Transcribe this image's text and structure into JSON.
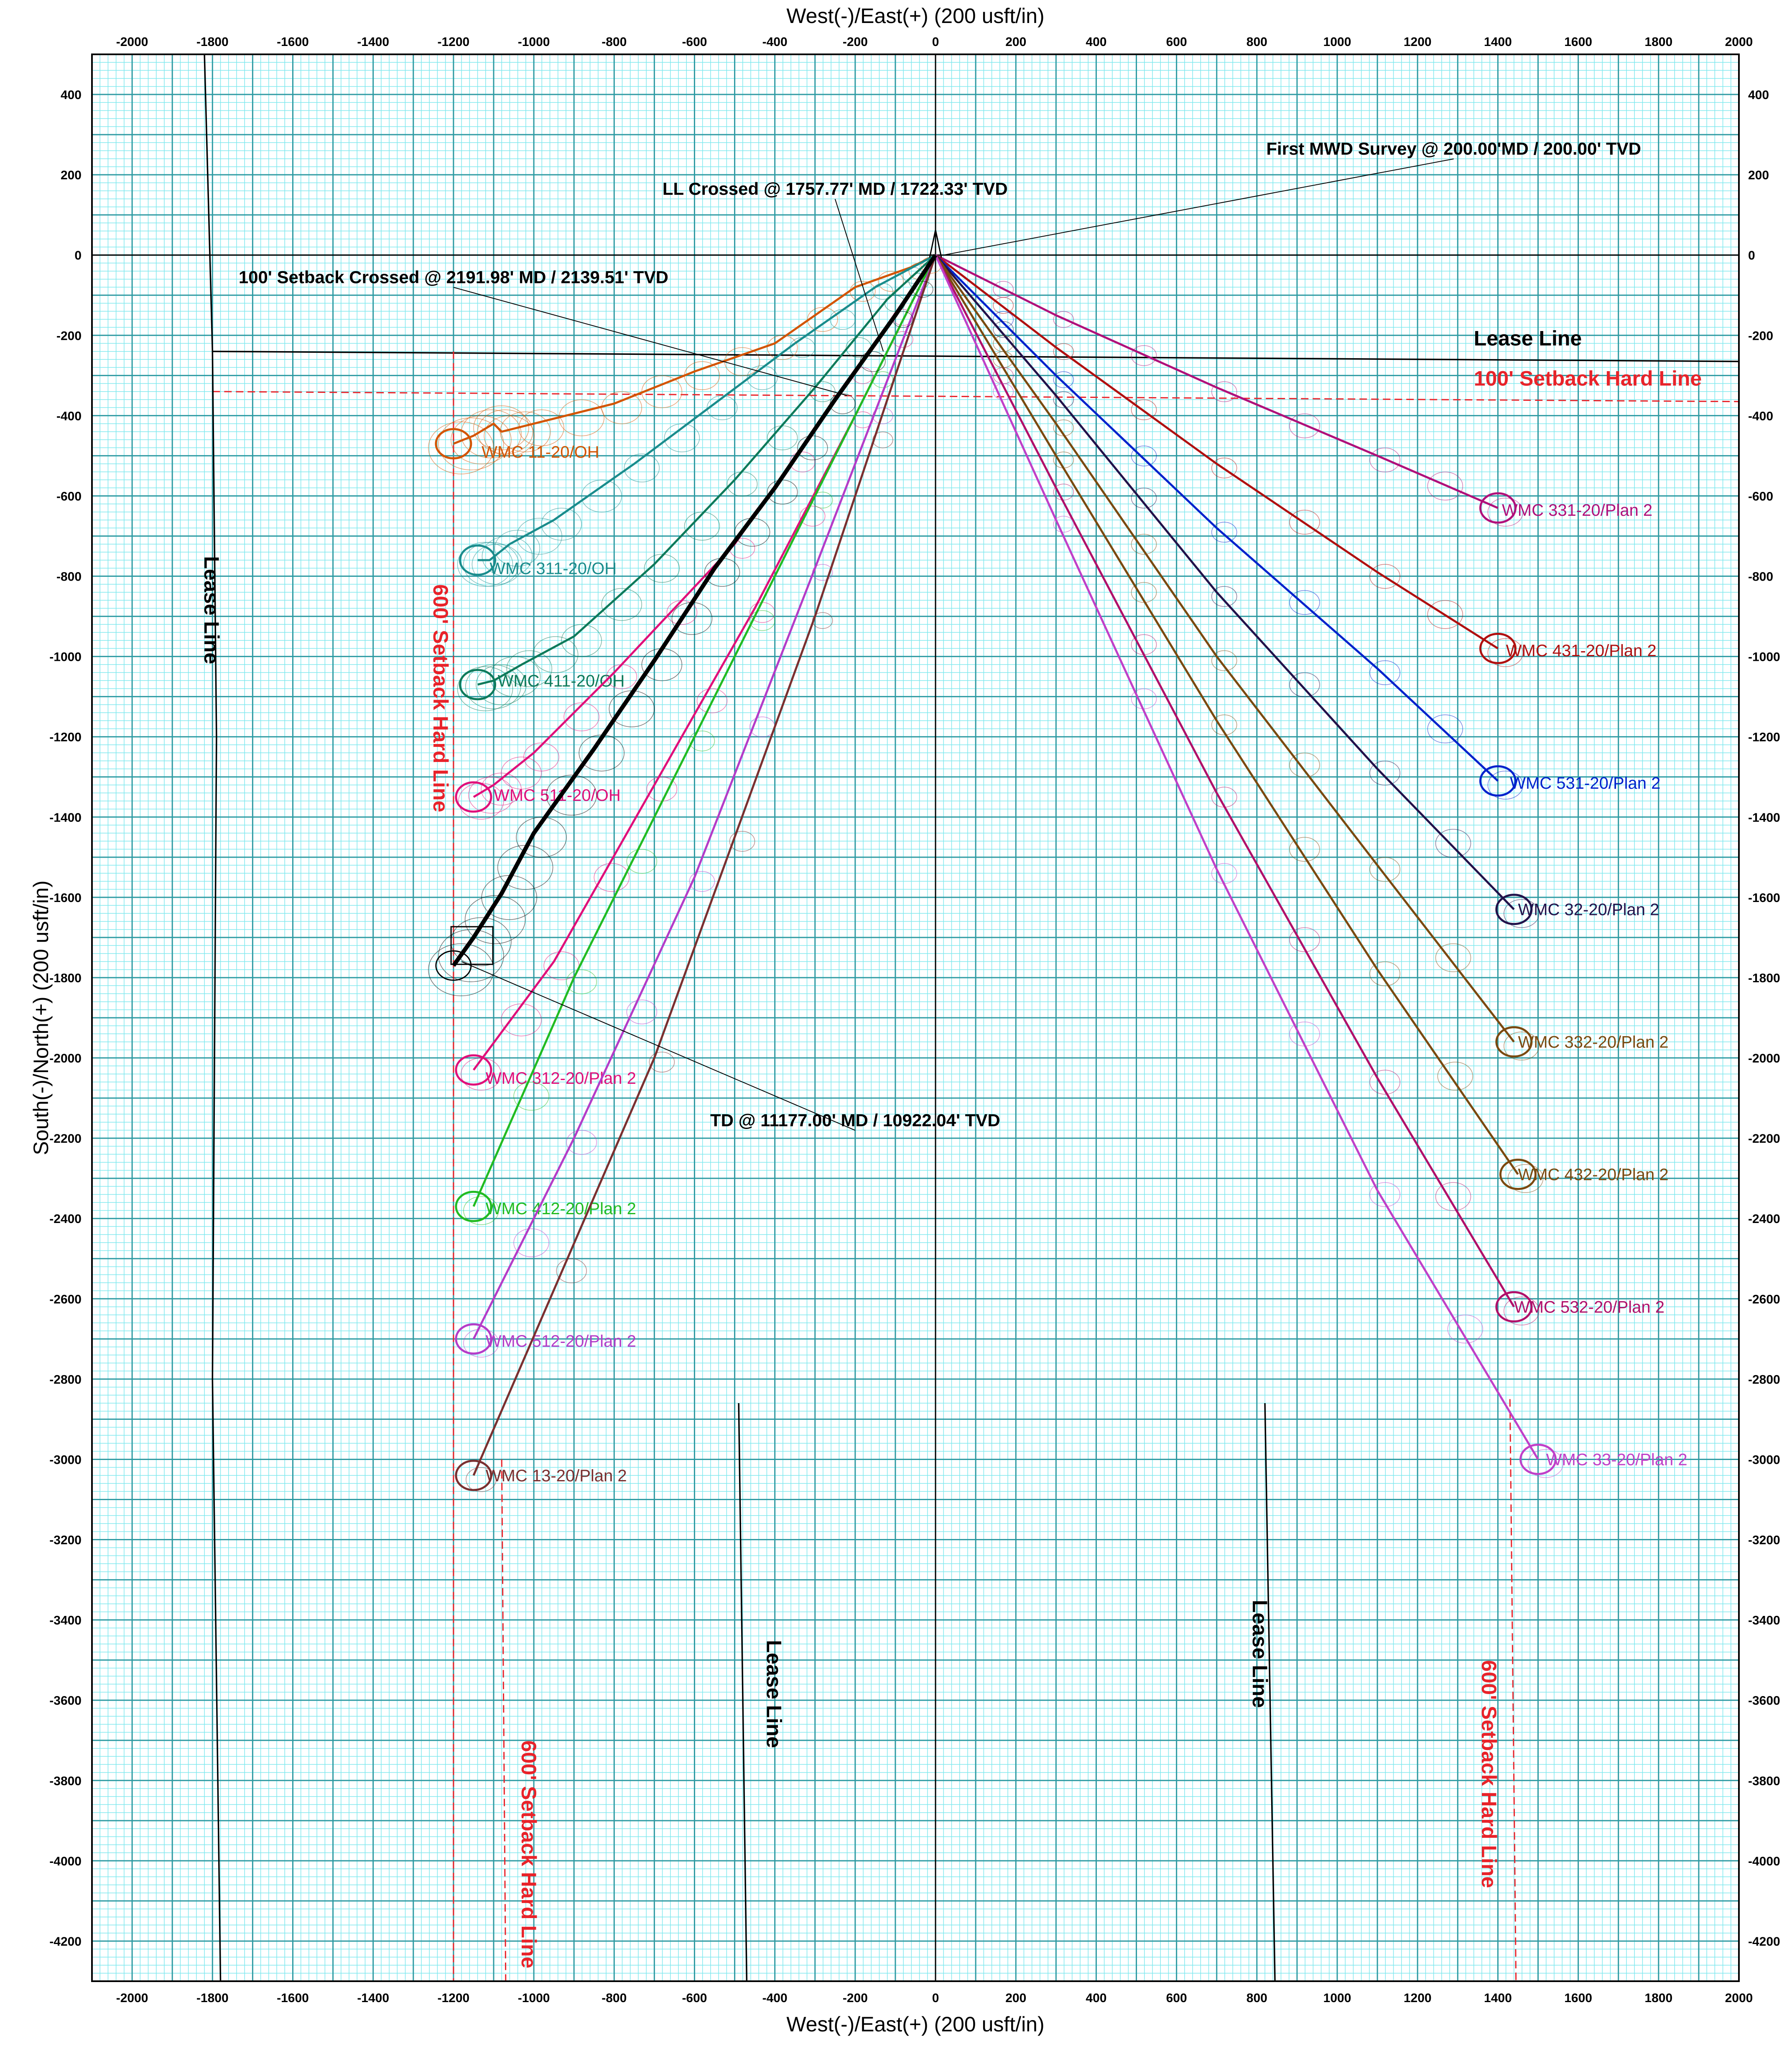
{
  "chart_data": {
    "type": "line",
    "title": "",
    "xlabel": "West(-)/East(+) (200 usft/in)",
    "ylabel": "South(-)/North(+) (200 usft/in)",
    "xlim": [
      -2100,
      2000
    ],
    "ylim": [
      -4300,
      500
    ],
    "x_ticks": [
      -2000,
      -1800,
      -1600,
      -1400,
      -1200,
      -1000,
      -800,
      -600,
      -400,
      -200,
      0,
      200,
      400,
      600,
      800,
      1000,
      1200,
      1400,
      1600,
      1800,
      2000
    ],
    "y_ticks": [
      400,
      200,
      0,
      -200,
      -400,
      -600,
      -800,
      -1000,
      -1200,
      -1400,
      -1600,
      -1800,
      -2000,
      -2200,
      -2400,
      -2600,
      -2800,
      -3000,
      -3200,
      -3400,
      -3600,
      -3800,
      -4000,
      -4200
    ],
    "grid": true,
    "colors": {
      "background": "#ffffff",
      "grid_minor": "#7ee8ee",
      "grid_major": "#2e9aa2",
      "axis": "#000000",
      "lease_line": "#000000",
      "setback": "#e8232a"
    },
    "series": [
      {
        "name": "WMC 11-20/OH",
        "color": "#d35400",
        "label_xy": [
          -1130,
          -490
        ],
        "points": [
          [
            0,
            0
          ],
          [
            -60,
            -30
          ],
          [
            -200,
            -80
          ],
          [
            -400,
            -220
          ],
          [
            -600,
            -290
          ],
          [
            -800,
            -370
          ],
          [
            -1000,
            -420
          ],
          [
            -1080,
            -440
          ],
          [
            -1100,
            -420
          ],
          [
            -1150,
            -450
          ],
          [
            -1200,
            -470
          ]
        ]
      },
      {
        "name": "WMC 311-20/OH",
        "color": "#1a8c8c",
        "label_xy": [
          -1110,
          -780
        ],
        "points": [
          [
            0,
            0
          ],
          [
            -150,
            -80
          ],
          [
            -350,
            -220
          ],
          [
            -550,
            -370
          ],
          [
            -750,
            -520
          ],
          [
            -950,
            -660
          ],
          [
            -1060,
            -720
          ],
          [
            -1110,
            -760
          ],
          [
            -1140,
            -760
          ]
        ]
      },
      {
        "name": "WMC 411-20/OH",
        "color": "#0e7a5a",
        "label_xy": [
          -1090,
          -1060
        ],
        "points": [
          [
            0,
            0
          ],
          [
            -120,
            -110
          ],
          [
            -300,
            -330
          ],
          [
            -500,
            -560
          ],
          [
            -700,
            -770
          ],
          [
            -900,
            -950
          ],
          [
            -1030,
            -1020
          ],
          [
            -1100,
            -1060
          ],
          [
            -1140,
            -1070
          ]
        ]
      },
      {
        "name": "WMC 511-20/OH",
        "color": "#e0107a",
        "label_xy": [
          -1100,
          -1345
        ],
        "points": [
          [
            0,
            0
          ],
          [
            -200,
            -290
          ],
          [
            -500,
            -720
          ],
          [
            -800,
            -1040
          ],
          [
            -1000,
            -1240
          ],
          [
            -1100,
            -1320
          ],
          [
            -1150,
            -1350
          ]
        ]
      },
      {
        "name": "WMC 312-20/Plan 2",
        "color": "#e0107a",
        "label_xy": [
          -1120,
          -2050
        ],
        "points": [
          [
            0,
            0
          ],
          [
            -200,
            -400
          ],
          [
            -450,
            -880
          ],
          [
            -700,
            -1320
          ],
          [
            -950,
            -1760
          ],
          [
            -1150,
            -2030
          ]
        ]
      },
      {
        "name": "WMC 412-20/Plan 2",
        "color": "#22bb22",
        "label_xy": [
          -1120,
          -2375
        ],
        "points": [
          [
            0,
            0
          ],
          [
            -300,
            -600
          ],
          [
            -600,
            -1200
          ],
          [
            -900,
            -1800
          ],
          [
            -1150,
            -2370
          ]
        ]
      },
      {
        "name": "WMC 512-20/Plan 2",
        "color": "#b43cc8",
        "label_xy": [
          -1120,
          -2705
        ],
        "points": [
          [
            0,
            0
          ],
          [
            -300,
            -780
          ],
          [
            -600,
            -1550
          ],
          [
            -900,
            -2200
          ],
          [
            -1150,
            -2700
          ]
        ]
      },
      {
        "name": "WMC 13-20/Plan 2",
        "color": "#7a3030",
        "label_xy": [
          -1120,
          -3040
        ],
        "points": [
          [
            0,
            0
          ],
          [
            -300,
            -900
          ],
          [
            -700,
            -2000
          ],
          [
            -1150,
            -3040
          ]
        ]
      },
      {
        "name": "WMC 331-20/Plan 2",
        "color": "#b0107a",
        "label_xy": [
          1410,
          -635
        ],
        "points": [
          [
            0,
            0
          ],
          [
            300,
            -150
          ],
          [
            700,
            -330
          ],
          [
            1100,
            -500
          ],
          [
            1400,
            -630
          ]
        ]
      },
      {
        "name": "WMC 431-20/Plan 2",
        "color": "#b01010",
        "label_xy": [
          1420,
          -985
        ],
        "points": [
          [
            0,
            0
          ],
          [
            300,
            -230
          ],
          [
            700,
            -520
          ],
          [
            1100,
            -790
          ],
          [
            1400,
            -980
          ]
        ]
      },
      {
        "name": "WMC 531-20/Plan 2",
        "color": "#0022cc",
        "label_xy": [
          1430,
          -1315
        ],
        "points": [
          [
            0,
            0
          ],
          [
            300,
            -300
          ],
          [
            700,
            -680
          ],
          [
            1100,
            -1030
          ],
          [
            1400,
            -1310
          ]
        ]
      },
      {
        "name": "WMC 32-20/Plan 2",
        "color": "#22124a",
        "label_xy": [
          1450,
          -1630
        ],
        "points": [
          [
            0,
            0
          ],
          [
            300,
            -350
          ],
          [
            700,
            -840
          ],
          [
            1100,
            -1280
          ],
          [
            1440,
            -1630
          ]
        ]
      },
      {
        "name": "WMC 332-20/Plan 2",
        "color": "#7a4a10",
        "label_xy": [
          1450,
          -1960
        ],
        "points": [
          [
            0,
            0
          ],
          [
            300,
            -420
          ],
          [
            700,
            -1000
          ],
          [
            1100,
            -1520
          ],
          [
            1440,
            -1960
          ]
        ]
      },
      {
        "name": "WMC 432-20/Plan 2",
        "color": "#7a4a10",
        "label_xy": [
          1450,
          -2290
        ],
        "points": [
          [
            0,
            0
          ],
          [
            300,
            -500
          ],
          [
            700,
            -1160
          ],
          [
            1100,
            -1780
          ],
          [
            1450,
            -2290
          ]
        ]
      },
      {
        "name": "WMC 532-20/Plan 2",
        "color": "#b0106a",
        "label_xy": [
          1440,
          -2620
        ],
        "points": [
          [
            0,
            0
          ],
          [
            300,
            -580
          ],
          [
            700,
            -1340
          ],
          [
            1100,
            -2050
          ],
          [
            1440,
            -2620
          ]
        ]
      },
      {
        "name": "WMC 33-20/Plan 2",
        "color": "#c040c8",
        "label_xy": [
          1520,
          -3000
        ],
        "points": [
          [
            0,
            0
          ],
          [
            300,
            -660
          ],
          [
            700,
            -1530
          ],
          [
            1100,
            -2330
          ],
          [
            1500,
            -3000
          ]
        ]
      },
      {
        "name": "",
        "color": "#000000",
        "label_xy": null,
        "points": [
          [
            0,
            0
          ],
          [
            -100,
            -150
          ],
          [
            -250,
            -360
          ],
          [
            -400,
            -580
          ],
          [
            -550,
            -780
          ],
          [
            -700,
            -1010
          ],
          [
            -850,
            -1230
          ],
          [
            -1000,
            -1440
          ],
          [
            -1080,
            -1590
          ],
          [
            -1150,
            -1700
          ],
          [
            -1200,
            -1770
          ]
        ]
      }
    ],
    "reference_lines": [
      {
        "name": "Lease Line",
        "color": "#000000",
        "dash": false,
        "points": [
          [
            -1800,
            -240
          ],
          [
            2000,
            -265
          ]
        ]
      },
      {
        "name": "100' Setback Hard Line",
        "color": "#e8232a",
        "dash": true,
        "points": [
          [
            -1800,
            -340
          ],
          [
            2000,
            -365
          ]
        ]
      },
      {
        "name": "Lease Line",
        "color": "#000000",
        "dash": false,
        "points": [
          [
            -1820,
            500
          ],
          [
            -1800,
            -240
          ],
          [
            -1790,
            -1200
          ],
          [
            -1800,
            -2800
          ],
          [
            -1780,
            -4300
          ]
        ]
      },
      {
        "name": "600' Setback Hard Line",
        "color": "#e8232a",
        "dash": true,
        "points": [
          [
            -1200,
            -240
          ],
          [
            -1200,
            -4300
          ]
        ]
      },
      {
        "name": "600' Setback Hard Line",
        "color": "#e8232a",
        "dash": true,
        "points": [
          [
            -1080,
            -3000
          ],
          [
            -1070,
            -4300
          ]
        ]
      },
      {
        "name": "Lease Line",
        "color": "#000000",
        "dash": false,
        "points": [
          [
            -490,
            -2860
          ],
          [
            -470,
            -4300
          ]
        ]
      },
      {
        "name": "Lease Line",
        "color": "#000000",
        "dash": false,
        "points": [
          [
            820,
            -2860
          ],
          [
            845,
            -4300
          ]
        ]
      },
      {
        "name": "600' Setback Hard Line",
        "color": "#e8232a",
        "dash": true,
        "points": [
          [
            1430,
            -2850
          ],
          [
            1445,
            -4300
          ]
        ]
      }
    ],
    "line_labels": [
      {
        "text": "Lease Line",
        "color": "#000000",
        "at": [
          1340,
          -225
        ],
        "rotate": 0
      },
      {
        "text": "100' Setback Hard Line",
        "color": "#e8232a",
        "at": [
          1340,
          -325
        ],
        "rotate": 0
      },
      {
        "text": "Lease Line",
        "color": "#000000",
        "at": [
          -1820,
          -750
        ],
        "rotate": 90
      },
      {
        "text": "600' Setback Hard Line",
        "color": "#e8232a",
        "at": [
          -1250,
          -820
        ],
        "rotate": 90
      },
      {
        "text": "600' Setback Hard Line",
        "color": "#e8232a",
        "at": [
          -1030,
          -3700
        ],
        "rotate": 90
      },
      {
        "text": "Lease Line",
        "color": "#000000",
        "at": [
          -420,
          -3450
        ],
        "rotate": 90
      },
      {
        "text": "Lease Line",
        "color": "#000000",
        "at": [
          790,
          -3350
        ],
        "rotate": 90
      },
      {
        "text": "600' Setback Hard Line",
        "color": "#e8232a",
        "at": [
          1360,
          -3500
        ],
        "rotate": 90
      }
    ],
    "annotations": [
      {
        "text": "First MWD Survey @ 200.00'MD / 200.00' TVD",
        "at": [
          1290,
          250
        ],
        "target": [
          20,
          0
        ]
      },
      {
        "text": "LL Crossed @ 1757.77' MD / 1722.33' TVD",
        "at": [
          -250,
          150
        ],
        "target": [
          -130,
          -240
        ]
      },
      {
        "text": "100' Setback Crossed @ 2191.98' MD / 2139.51' TVD",
        "at": [
          -1200,
          -70
        ],
        "target": [
          -220,
          -350
        ]
      },
      {
        "text": "TD @ 11177.00' MD / 10922.04' TVD",
        "at": [
          -200,
          -2170
        ],
        "target": [
          -1180,
          -1760
        ]
      }
    ]
  }
}
